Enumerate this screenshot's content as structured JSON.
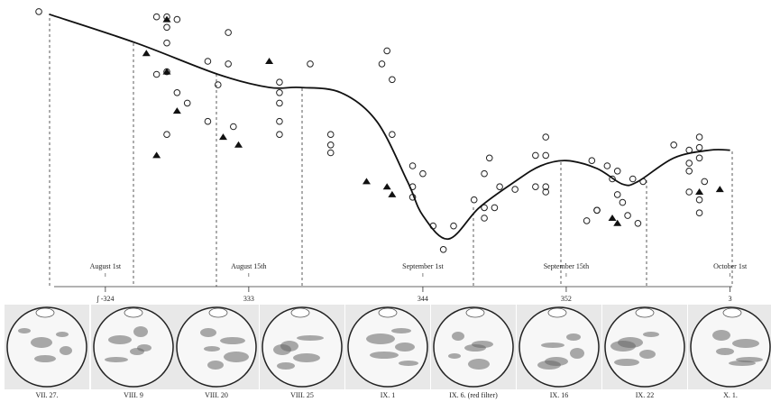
{
  "chart_data": {
    "type": "scatter",
    "xlim": [
      205,
      275
    ],
    "ylim": [
      0,
      100
    ],
    "xticks": [
      {
        "value": 213,
        "label": "August 1st"
      },
      {
        "value": 227,
        "label": "August 15th"
      },
      {
        "value": 244,
        "label": "September 1st"
      },
      {
        "value": 258,
        "label": "September 15th"
      },
      {
        "value": 274,
        "label": "October 1st"
      }
    ],
    "x2ticks": [
      {
        "value": 213,
        "label": "ʃ -324"
      },
      {
        "value": 227,
        "label": "333"
      },
      {
        "value": 244,
        "label": "344"
      },
      {
        "value": 258,
        "label": "352"
      },
      {
        "value": 274,
        "label": "3"
      }
    ],
    "series": [
      {
        "marker": "circle",
        "color": "#222222",
        "x": [
          206.5,
          218,
          219,
          220,
          219,
          219,
          218,
          219,
          220,
          221,
          219,
          223,
          225,
          225,
          224,
          223,
          225.5,
          230,
          230,
          230,
          230,
          230,
          233,
          235,
          235,
          235,
          240.5,
          240,
          241,
          241,
          243,
          244,
          243,
          243,
          245,
          246,
          247,
          249,
          250,
          250,
          250.5,
          250,
          251.5,
          251,
          253,
          255,
          256,
          256,
          255,
          256,
          256,
          260.5,
          262,
          263,
          262.5,
          263,
          263.5,
          261,
          260,
          261,
          264,
          265,
          264.5,
          265.5,
          268.5,
          270,
          271,
          270,
          271,
          271,
          270,
          271.5,
          270,
          271,
          271
        ],
        "values": [
          99,
          97,
          97,
          96,
          93,
          87,
          75,
          76,
          68,
          64,
          52,
          80,
          91,
          79,
          71,
          57,
          55,
          72,
          68,
          64,
          57,
          52,
          79,
          52,
          48,
          45,
          84,
          79,
          73,
          52,
          40,
          37,
          32,
          28,
          17,
          8,
          17,
          27,
          24,
          20,
          43,
          37,
          32,
          24,
          31,
          44,
          44,
          51,
          32,
          32,
          30,
          42,
          40,
          38,
          35,
          29,
          26,
          23,
          19,
          23,
          21,
          18,
          35,
          34,
          48,
          46,
          51,
          41,
          43,
          47,
          38,
          34,
          30,
          27,
          22
        ]
      },
      {
        "marker": "triangle",
        "color": "#111111",
        "x": [
          217,
          219,
          219,
          220,
          218,
          224.5,
          226,
          229,
          238.5,
          240.5,
          241,
          262.5,
          263,
          271,
          273
        ],
        "values": [
          83,
          96,
          76,
          61,
          44,
          51,
          48,
          80,
          34,
          32,
          29,
          20,
          18,
          30,
          31
        ]
      },
      {
        "marker": "line",
        "color": "#111111",
        "x": [
          207.5,
          216,
          224,
          229,
          232,
          236,
          239.5,
          242.5,
          244,
          246.5,
          249.5,
          253,
          255.5,
          258,
          261,
          263.5,
          265,
          268.5,
          272,
          274
        ],
        "values": [
          98,
          87,
          75,
          70,
          70,
          68,
          57,
          34,
          21,
          12,
          24,
          34,
          40,
          42,
          39,
          33,
          34,
          43,
          46,
          46
        ]
      }
    ]
  },
  "figure": {
    "disk_labels": [
      "VII. 27.",
      "VIII. 9",
      "VIII. 20",
      "VIII. 25",
      "IX. 1",
      "IX. 6. (red filter)",
      "IX. 16",
      "IX. 22",
      "X. 1."
    ]
  }
}
